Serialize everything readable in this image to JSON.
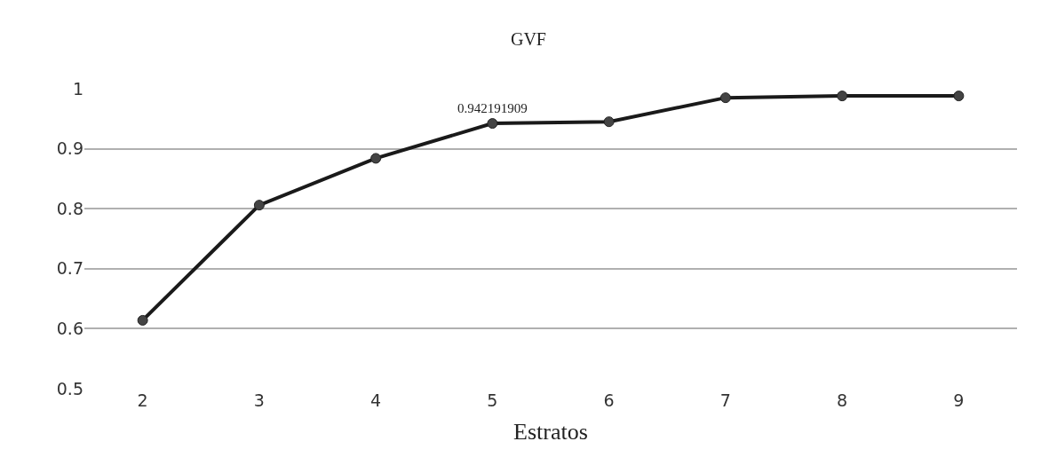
{
  "chart_data": {
    "type": "line",
    "title": "GVF",
    "xlabel": "Estratos",
    "categories": [
      "2",
      "3",
      "4",
      "5",
      "6",
      "7",
      "8",
      "9"
    ],
    "series": [
      {
        "color": "#1a1a1a",
        "values": [
          0.614,
          0.806,
          0.884,
          0.942191909,
          0.945,
          0.985,
          0.988,
          0.988
        ],
        "value_labels": [
          null,
          null,
          null,
          "0.942191909",
          null,
          null,
          null,
          null
        ]
      }
    ],
    "ylim": [
      0.5,
      1
    ],
    "yticks": [
      0.5,
      0.6,
      0.7,
      0.8,
      0.9,
      1
    ],
    "grid": "y",
    "legend": false,
    "marker": "circle",
    "line_style": "solid"
  }
}
